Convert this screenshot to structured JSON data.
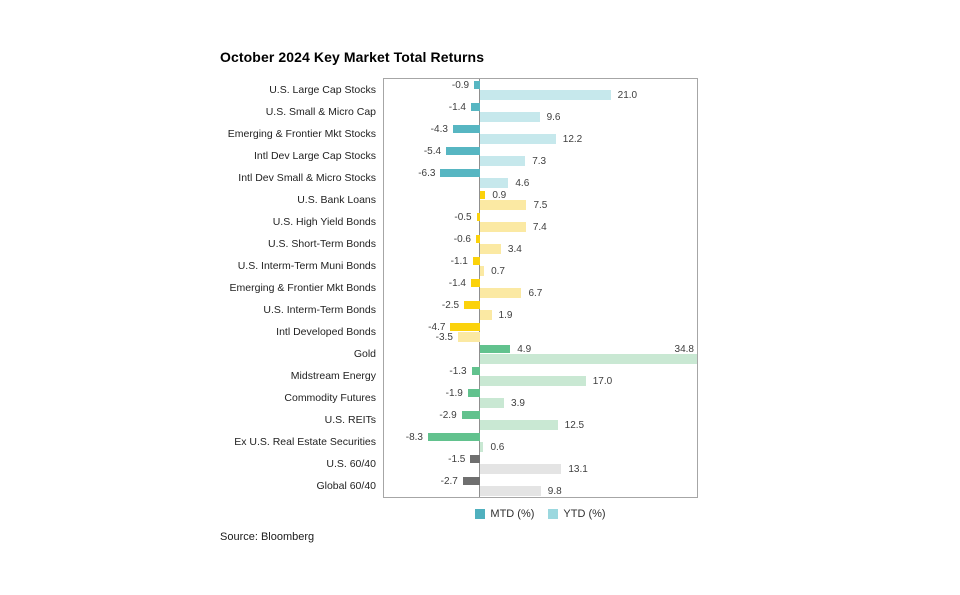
{
  "page": {
    "title": "October 2024 Key Market Total Returns",
    "source": "Source: Bloomberg"
  },
  "legend": {
    "mtd_label": "MTD (%)",
    "ytd_label": "YTD (%)"
  },
  "colors": {
    "stocks": {
      "mtd": "#57B6C2",
      "ytd": "#C6E8EC"
    },
    "bonds": {
      "mtd": "#FBD20B",
      "ytd": "#FBE9A3"
    },
    "real_assets": {
      "mtd": "#62C28E",
      "ytd": "#C9E8D3"
    },
    "blend": {
      "mtd": "#6F6F6F",
      "ytd": "#E4E4E4"
    },
    "legend_mtd": "#4FB0BE",
    "legend_ytd": "#9BD8DF",
    "axis_line": "#8F8F8F",
    "plot_border": "#A6A6A6",
    "value_label": "#3E3E3E"
  },
  "chart_data": {
    "type": "bar",
    "orientation": "horizontal",
    "title": "October 2024 Key Market Total Returns",
    "categories": [
      "U.S. Large Cap Stocks",
      "U.S. Small & Micro Cap",
      "Emerging & Frontier Mkt Stocks",
      "Intl Dev Large Cap Stocks",
      "Intl Dev Small & Micro Stocks",
      "U.S. Bank Loans",
      "U.S. High Yield Bonds",
      "U.S. Short-Term Bonds",
      "U.S. Interm-Term Muni Bonds",
      "Emerging & Frontier Mkt Bonds",
      "U.S. Interm-Term Bonds",
      "Intl Developed Bonds",
      "Gold",
      "Midstream Energy",
      "Commodity Futures",
      "U.S. REITs",
      "Ex U.S. Real Estate Securities",
      "U.S. 60/40",
      "Global 60/40"
    ],
    "groups": [
      "stocks",
      "stocks",
      "stocks",
      "stocks",
      "stocks",
      "bonds",
      "bonds",
      "bonds",
      "bonds",
      "bonds",
      "bonds",
      "bonds",
      "real_assets",
      "real_assets",
      "real_assets",
      "real_assets",
      "real_assets",
      "blend",
      "blend"
    ],
    "series": [
      {
        "name": "MTD (%)",
        "values": [
          -0.9,
          -1.4,
          -4.3,
          -5.4,
          -6.3,
          0.9,
          -0.5,
          -0.6,
          -1.1,
          -1.4,
          -2.5,
          -4.7,
          4.9,
          -1.3,
          -1.9,
          -2.9,
          -8.3,
          -1.5,
          -2.7
        ]
      },
      {
        "name": "YTD (%)",
        "values": [
          21.0,
          9.6,
          12.2,
          7.3,
          4.6,
          7.5,
          7.4,
          3.4,
          0.7,
          6.7,
          1.9,
          -3.5,
          34.8,
          17.0,
          3.9,
          12.5,
          0.6,
          13.1,
          9.8
        ]
      }
    ],
    "xlim": [
      -15.35,
      34.85
    ],
    "grid": false,
    "legend_position": "bottom",
    "value_label_format": "one_decimal"
  }
}
